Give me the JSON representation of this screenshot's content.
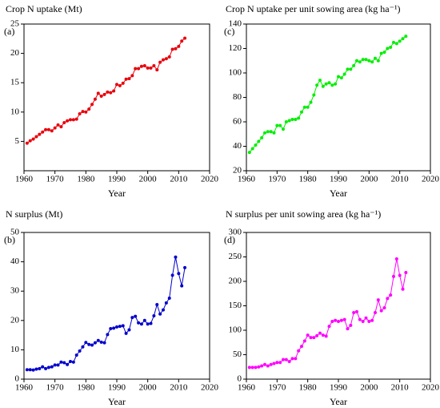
{
  "chart_data": [
    {
      "type": "line",
      "title": "Crop N uptake (Mt)",
      "panel_label": "(a)",
      "x_label": "Year",
      "color": "#e8000b",
      "x": [
        1961,
        1962,
        1963,
        1964,
        1965,
        1966,
        1967,
        1968,
        1969,
        1970,
        1971,
        1972,
        1973,
        1974,
        1975,
        1976,
        1977,
        1978,
        1979,
        1980,
        1981,
        1982,
        1983,
        1984,
        1985,
        1986,
        1987,
        1988,
        1989,
        1990,
        1991,
        1992,
        1993,
        1994,
        1995,
        1996,
        1997,
        1998,
        1999,
        2000,
        2001,
        2002,
        2003,
        2004,
        2005,
        2006,
        2007,
        2008,
        2009,
        2010,
        2011,
        2012
      ],
      "values": [
        4.7,
        5.1,
        5.4,
        5.8,
        6.2,
        6.6,
        7.0,
        7.0,
        6.8,
        7.3,
        7.8,
        7.5,
        8.2,
        8.5,
        8.7,
        8.7,
        8.8,
        9.7,
        10.1,
        10.0,
        10.5,
        11.3,
        12.2,
        13.2,
        12.7,
        13.0,
        13.4,
        13.3,
        13.6,
        14.7,
        14.5,
        14.9,
        15.6,
        15.7,
        16.2,
        17.4,
        17.4,
        17.8,
        17.9,
        17.5,
        17.5,
        17.9,
        17.2,
        18.5,
        18.9,
        19.1,
        19.4,
        20.7,
        20.8,
        21.2,
        22.1,
        22.6
      ],
      "xlim": [
        1960,
        2020
      ],
      "xticks": [
        1960,
        1970,
        1980,
        1990,
        2000,
        2010,
        2020
      ],
      "ylim": [
        0,
        25
      ],
      "yticks": [
        5,
        10,
        15,
        20,
        25
      ]
    },
    {
      "type": "line",
      "title": "Crop N uptake per unit sowing area (kg ha⁻¹)",
      "panel_label": "(c)",
      "x_label": "Year",
      "color": "#00ee00",
      "x": [
        1961,
        1962,
        1963,
        1964,
        1965,
        1966,
        1967,
        1968,
        1969,
        1970,
        1971,
        1972,
        1973,
        1974,
        1975,
        1976,
        1977,
        1978,
        1979,
        1980,
        1981,
        1982,
        1983,
        1984,
        1985,
        1986,
        1987,
        1988,
        1989,
        1990,
        1991,
        1992,
        1993,
        1994,
        1995,
        1996,
        1997,
        1998,
        1999,
        2000,
        2001,
        2002,
        2003,
        2004,
        2005,
        2006,
        2007,
        2008,
        2009,
        2010,
        2011,
        2012
      ],
      "values": [
        35,
        38,
        41,
        44,
        47,
        51,
        52,
        52,
        51,
        57,
        57,
        54,
        60,
        61,
        62,
        62,
        63,
        68,
        72,
        72,
        76,
        82,
        90,
        94,
        89,
        91,
        92,
        90,
        91,
        97,
        96,
        99,
        103,
        103,
        106,
        110,
        109,
        111,
        111,
        110,
        109,
        112,
        110,
        116,
        117,
        120,
        121,
        125,
        124,
        126,
        128,
        130
      ],
      "xlim": [
        1960,
        2020
      ],
      "xticks": [
        1960,
        1970,
        1980,
        1990,
        2000,
        2010,
        2020
      ],
      "ylim": [
        20,
        140
      ],
      "yticks": [
        20,
        40,
        60,
        80,
        100,
        120,
        140
      ]
    },
    {
      "type": "line",
      "title": "N surplus (Mt)",
      "panel_label": "(b)",
      "x_label": "Year",
      "color": "#0000cc",
      "x": [
        1961,
        1962,
        1963,
        1964,
        1965,
        1966,
        1967,
        1968,
        1969,
        1970,
        1971,
        1972,
        1973,
        1974,
        1975,
        1976,
        1977,
        1978,
        1979,
        1980,
        1981,
        1982,
        1983,
        1984,
        1985,
        1986,
        1987,
        1988,
        1989,
        1990,
        1991,
        1992,
        1993,
        1994,
        1995,
        1996,
        1997,
        1998,
        1999,
        2000,
        2001,
        2002,
        2003,
        2004,
        2005,
        2006,
        2007,
        2008,
        2009,
        2010,
        2011,
        2012
      ],
      "values": [
        3.2,
        3.2,
        3.1,
        3.4,
        3.6,
        4.2,
        3.6,
        4.0,
        4.2,
        4.8,
        4.8,
        5.8,
        5.6,
        5.0,
        6.0,
        5.8,
        8.2,
        9.6,
        11.0,
        12.5,
        11.8,
        11.6,
        12.4,
        13.2,
        12.6,
        12.4,
        15.2,
        17.2,
        17.4,
        17.8,
        18.0,
        18.2,
        15.6,
        16.8,
        21.0,
        21.4,
        19.2,
        18.8,
        20.0,
        18.8,
        19.0,
        21.6,
        25.4,
        22.2,
        23.6,
        26.0,
        27.6,
        35.4,
        41.6,
        36.0,
        31.8,
        38.0
      ],
      "xlim": [
        1960,
        2020
      ],
      "xticks": [
        1960,
        1970,
        1980,
        1990,
        2000,
        2010,
        2020
      ],
      "ylim": [
        0,
        50
      ],
      "yticks": [
        0,
        10,
        20,
        30,
        40,
        50
      ]
    },
    {
      "type": "line",
      "title": "N surplus per unit sowing area (kg ha⁻¹)",
      "panel_label": "(d)",
      "x_label": "Year",
      "color": "#ff00ff",
      "x": [
        1961,
        1962,
        1963,
        1964,
        1965,
        1966,
        1967,
        1968,
        1969,
        1970,
        1971,
        1972,
        1973,
        1974,
        1975,
        1976,
        1977,
        1978,
        1979,
        1980,
        1981,
        1982,
        1983,
        1984,
        1985,
        1986,
        1987,
        1988,
        1989,
        1990,
        1991,
        1992,
        1993,
        1994,
        1995,
        1996,
        1997,
        1998,
        1999,
        2000,
        2001,
        2002,
        2003,
        2004,
        2005,
        2006,
        2007,
        2008,
        2009,
        2010,
        2011,
        2012
      ],
      "values": [
        24,
        24,
        24,
        25,
        27,
        30,
        27,
        30,
        32,
        34,
        34,
        40,
        40,
        36,
        42,
        42,
        58,
        67,
        78,
        90,
        85,
        85,
        89,
        94,
        90,
        88,
        108,
        118,
        120,
        118,
        120,
        122,
        103,
        110,
        136,
        138,
        122,
        118,
        125,
        118,
        120,
        136,
        162,
        140,
        146,
        165,
        172,
        210,
        246,
        212,
        184,
        218
      ],
      "xlim": [
        1960,
        2020
      ],
      "xticks": [
        1960,
        1970,
        1980,
        1990,
        2000,
        2010,
        2020
      ],
      "ylim": [
        0,
        300
      ],
      "yticks": [
        0,
        50,
        100,
        150,
        200,
        250,
        300
      ]
    }
  ]
}
